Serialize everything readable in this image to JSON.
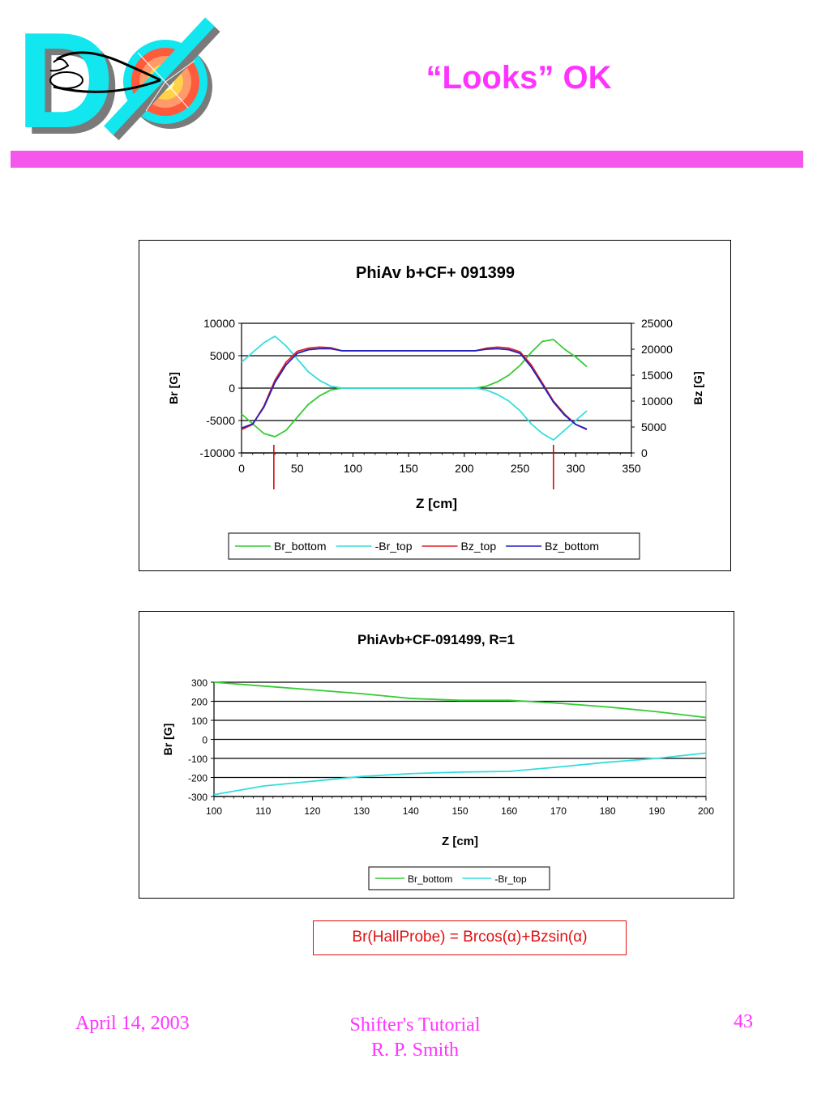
{
  "slide": {
    "title": "“Looks” OK",
    "logo_text": "DØ",
    "formula": "Br(HallProbe) = Brcos(α)+Bzsin(α)",
    "footer": {
      "date": "April 14, 2003",
      "center_line1": "Shifter's Tutorial",
      "center_line2": "R. P. Smith",
      "page": "43"
    }
  },
  "colors": {
    "accent_pink": "#ff33ff",
    "bar_pink": "#f557ec",
    "br_bottom": "#33cc33",
    "br_top": "#33dddd",
    "bz_top": "#e02020",
    "bz_bottom": "#2020c0",
    "marker_red": "#cc0000"
  },
  "chart_data": [
    {
      "type": "line",
      "title": "PhiAv b+CF+ 091399",
      "xlabel": "Z [cm]",
      "ylabel": "Br [G]",
      "y2label": "Bz [G]",
      "xlim": [
        0,
        350
      ],
      "ylim": [
        -10000,
        10000
      ],
      "y2lim": [
        0,
        25000
      ],
      "xticks": [
        0,
        50,
        100,
        150,
        200,
        250,
        300,
        350
      ],
      "yticks": [
        -10000,
        -5000,
        0,
        5000,
        10000
      ],
      "y2ticks": [
        0,
        5000,
        10000,
        15000,
        20000,
        25000
      ],
      "grid": "horizontal",
      "legend_position": "bottom",
      "markers_x": [
        29,
        280
      ],
      "series": [
        {
          "name": "Br_bottom",
          "axis": "left",
          "x": [
            0,
            10,
            20,
            30,
            40,
            50,
            60,
            70,
            80,
            90,
            150,
            210,
            220,
            230,
            240,
            250,
            260,
            270,
            280,
            290,
            300,
            310
          ],
          "values": [
            -4000,
            -5500,
            -7000,
            -7500,
            -6500,
            -4500,
            -2500,
            -1200,
            -300,
            0,
            0,
            0,
            300,
            1000,
            2000,
            3500,
            5500,
            7200,
            7500,
            6000,
            4800,
            3300
          ]
        },
        {
          "name": "-Br_top",
          "axis": "left",
          "x": [
            0,
            10,
            20,
            30,
            40,
            50,
            60,
            70,
            80,
            90,
            150,
            210,
            220,
            230,
            240,
            250,
            260,
            270,
            280,
            290,
            300,
            310
          ],
          "values": [
            4000,
            5500,
            7000,
            8000,
            6500,
            4500,
            2500,
            1200,
            300,
            0,
            0,
            0,
            -300,
            -1000,
            -2000,
            -3500,
            -5500,
            -7000,
            -8000,
            -6500,
            -5000,
            -3500
          ]
        },
        {
          "name": "Bz_top",
          "axis": "right",
          "x": [
            0,
            10,
            20,
            30,
            40,
            50,
            60,
            70,
            80,
            90,
            150,
            210,
            220,
            230,
            240,
            250,
            260,
            270,
            280,
            290,
            300,
            310
          ],
          "values": [
            4500,
            5500,
            9000,
            14000,
            17500,
            19600,
            20200,
            20400,
            20300,
            19700,
            19700,
            19700,
            20200,
            20400,
            20200,
            19500,
            17000,
            13500,
            10000,
            7500,
            5500,
            4500
          ]
        },
        {
          "name": "Bz_bottom",
          "axis": "right",
          "x": [
            0,
            10,
            20,
            30,
            40,
            50,
            60,
            70,
            80,
            90,
            150,
            210,
            220,
            230,
            240,
            250,
            260,
            270,
            280,
            290,
            300,
            310
          ],
          "values": [
            4800,
            5600,
            8800,
            13600,
            17000,
            19200,
            19900,
            20100,
            20100,
            19700,
            19700,
            19700,
            20000,
            20100,
            19900,
            19200,
            16600,
            13200,
            9800,
            7300,
            5500,
            4600
          ]
        }
      ]
    },
    {
      "type": "line",
      "title": "PhiAvb+CF-091499, R=1",
      "xlabel": "Z [cm]",
      "ylabel": "Br [G]",
      "xlim": [
        100,
        200
      ],
      "ylim": [
        -300,
        300
      ],
      "xticks": [
        100,
        110,
        120,
        130,
        140,
        150,
        160,
        170,
        180,
        190,
        200
      ],
      "yticks": [
        -300,
        -200,
        -100,
        0,
        100,
        200,
        300
      ],
      "grid": "horizontal",
      "legend_position": "bottom",
      "series": [
        {
          "name": "Br_bottom",
          "x": [
            100,
            110,
            120,
            130,
            140,
            150,
            160,
            170,
            180,
            190,
            200
          ],
          "values": [
            300,
            280,
            260,
            240,
            215,
            205,
            205,
            190,
            170,
            145,
            115
          ]
        },
        {
          "name": "-Br_top",
          "x": [
            100,
            110,
            120,
            130,
            140,
            150,
            160,
            170,
            180,
            190,
            200
          ],
          "values": [
            -290,
            -245,
            -220,
            -195,
            -180,
            -172,
            -168,
            -145,
            -120,
            -100,
            -72
          ]
        }
      ]
    }
  ]
}
